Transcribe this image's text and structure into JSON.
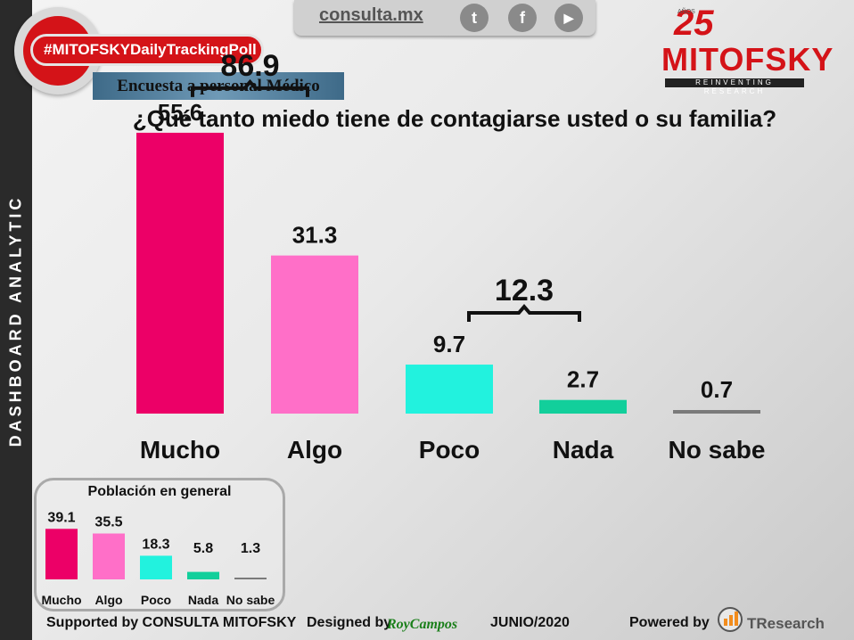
{
  "sidebar": {
    "label": "DASHBOARD ANALYTIC"
  },
  "header": {
    "site": "consulta.mx",
    "hashtag": "#MITOFSKYDailyTrackingPoll",
    "survey_label": "Encuesta a personal Médico",
    "social_icons": [
      "twitter-icon",
      "facebook-icon",
      "youtube-icon"
    ],
    "social_glyphs": [
      "t",
      "f",
      "▶"
    ]
  },
  "logo": {
    "years": "25",
    "anios": "AÑOS",
    "brand": "MITOFSKY",
    "tagline": "REINVENTING RESEARCH"
  },
  "colors": {
    "mucho": "#EC0067",
    "algo": "#FF6FC8",
    "poco": "#22F2DE",
    "nada": "#12CF9B",
    "no_sabe": "#7A7A7A"
  },
  "chart_data": [
    {
      "type": "bar",
      "title": "¿Qué tanto miedo tiene de contagiarse usted o su familia?",
      "categories": [
        "Mucho",
        "Algo",
        "Poco",
        "Nada",
        "No sabe"
      ],
      "values": [
        55.6,
        31.3,
        9.7,
        2.7,
        0.7
      ],
      "value_labels": [
        "55.6",
        "31.3",
        "9.7",
        "2.7",
        "0.7"
      ],
      "brackets": [
        {
          "label": "86.9",
          "categories": [
            "Mucho",
            "Algo"
          ]
        },
        {
          "label": "12.3",
          "categories": [
            "Poco",
            "Nada"
          ]
        }
      ],
      "xlabel": "",
      "ylabel": "",
      "ylim": [
        0,
        60
      ],
      "grid": false
    },
    {
      "type": "bar",
      "title": "Población en general",
      "categories": [
        "Mucho",
        "Algo",
        "Poco",
        "Nada",
        "No sabe"
      ],
      "values": [
        39.1,
        35.5,
        18.3,
        5.8,
        1.3
      ],
      "value_labels": [
        "39.1",
        "35.5",
        "18.3",
        "5.8",
        "1.3"
      ],
      "ylim": [
        0,
        40
      ],
      "grid": false
    }
  ],
  "footer": {
    "supported": "Supported by  CONSULTA  MITOFSKY",
    "designed": "Designed by",
    "designer": "RoyCampos",
    "date": "JUNIO/2020",
    "powered": "Powered by",
    "powered_brand": "TResearch"
  }
}
